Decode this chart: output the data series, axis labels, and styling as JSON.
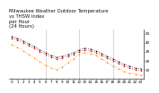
{
  "title": "Milwaukee Weather Outdoor Temperature\nvs THSW Index\nper Hour\n(24 Hours)",
  "hours": [
    0,
    1,
    2,
    3,
    4,
    5,
    6,
    7,
    8,
    9,
    10,
    11,
    12,
    13,
    14,
    15,
    16,
    17,
    18,
    19,
    20,
    21,
    22,
    23
  ],
  "temp": [
    45,
    43,
    40,
    37,
    34,
    30,
    27,
    24,
    22,
    23,
    25,
    27,
    30,
    32,
    31,
    29,
    26,
    23,
    20,
    17,
    14,
    12,
    10,
    9
  ],
  "thsw": [
    38,
    35,
    31,
    27,
    23,
    19,
    15,
    12,
    10,
    13,
    18,
    22,
    27,
    29,
    28,
    26,
    22,
    18,
    14,
    11,
    8,
    6,
    5,
    4
  ],
  "feels": [
    47,
    45,
    42,
    39,
    36,
    32,
    29,
    26,
    24,
    25,
    27,
    29,
    32,
    34,
    33,
    31,
    28,
    25,
    22,
    19,
    16,
    14,
    12,
    11
  ],
  "temp_color": "#dd0000",
  "thsw_color": "#ff8800",
  "feels_color": "#111111",
  "bg_color": "#ffffff",
  "grid_color": "#999999",
  "ylim": [
    0,
    55
  ],
  "ytick_vals": [
    10,
    20,
    30,
    40,
    50
  ],
  "ytick_labels": [
    "10",
    "20",
    "30",
    "40",
    "50"
  ],
  "title_fontsize": 3.8,
  "tick_fontsize": 3.0,
  "marker_size": 1.3,
  "line_width": 0.5
}
